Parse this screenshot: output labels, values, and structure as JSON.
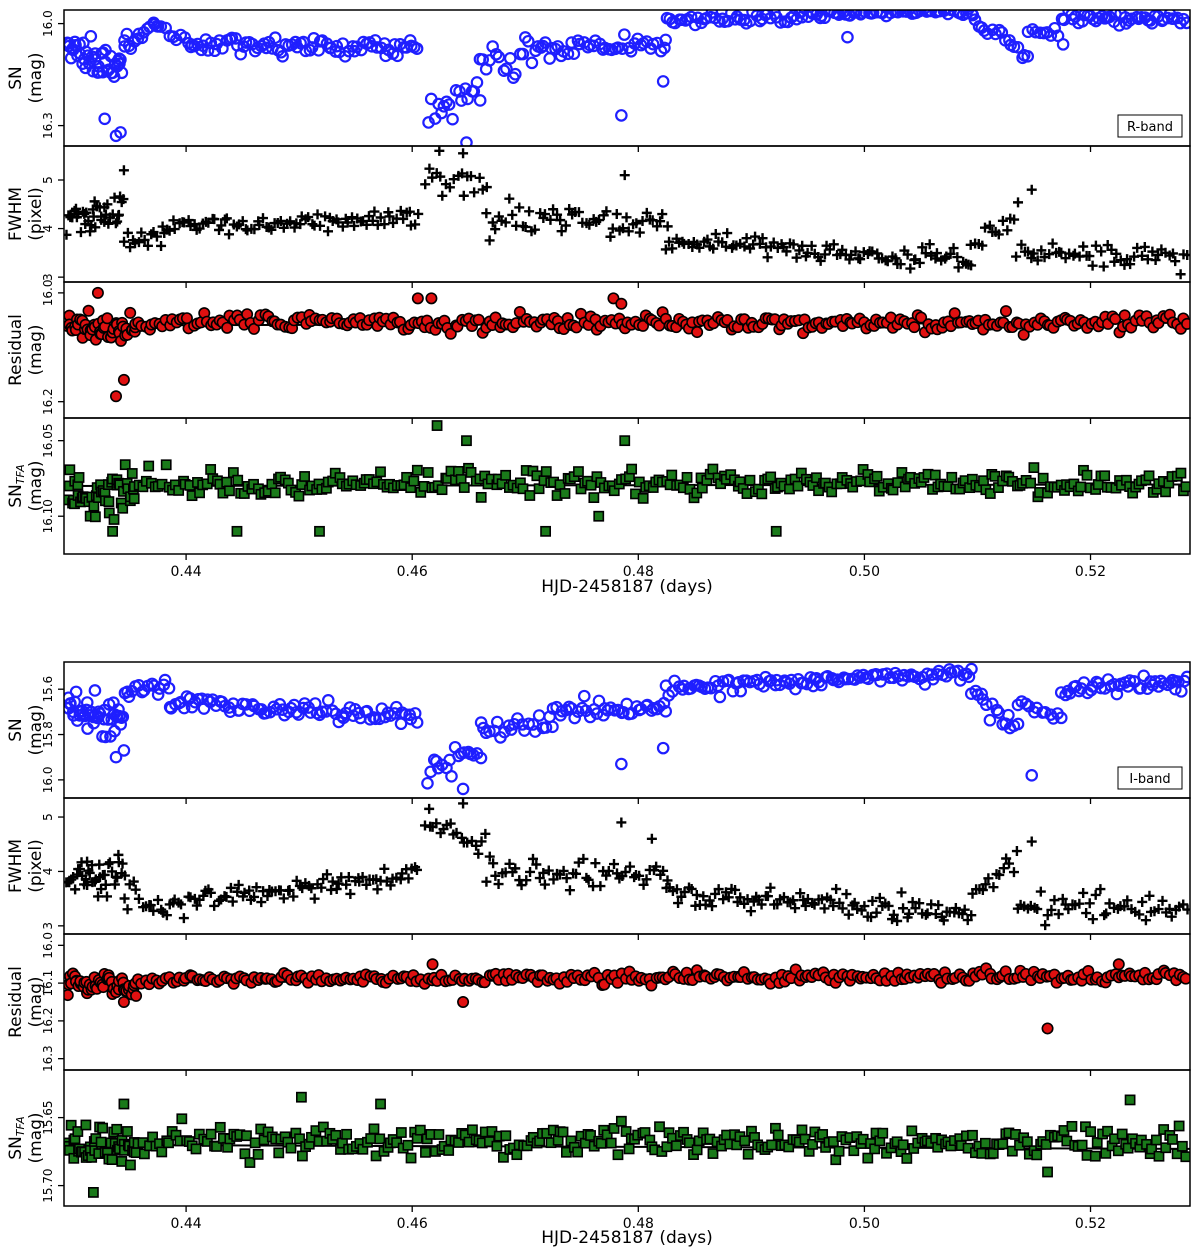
{
  "chart_data": [
    {
      "type": "scatter",
      "band_label": "R-band",
      "xlabel": "HJD-2458187 (days)",
      "xlim": [
        0.4292,
        0.5288
      ],
      "xticks": [
        0.44,
        0.46,
        0.48,
        0.5,
        0.52
      ],
      "xtick_labels": [
        "0.44",
        "0.46",
        "0.48",
        "0.50",
        "0.52"
      ],
      "panels": [
        {
          "id": "sn",
          "ylabel_lines": [
            "SN",
            "(mag)"
          ],
          "ylim": [
            15.96,
            16.36
          ],
          "inverted": true,
          "yticks": [
            16.0,
            16.3
          ],
          "ytick_labels": [
            "16.0",
            "16.3"
          ],
          "marker": "open-circle",
          "color": "#1f1fff",
          "seed": 11,
          "segments": [
            {
              "x0": 0.4295,
              "x1": 0.4345,
              "y0": 16.08,
              "y1": 16.13,
              "n": 45,
              "scatter": 0.045
            },
            {
              "x0": 0.4345,
              "x1": 0.4375,
              "y0": 16.07,
              "y1": 16.0,
              "n": 14,
              "scatter": 0.015
            },
            {
              "x0": 0.4375,
              "x1": 0.4405,
              "y0": 16.0,
              "y1": 16.06,
              "n": 10,
              "scatter": 0.015
            },
            {
              "x0": 0.4405,
              "x1": 0.4605,
              "y0": 16.06,
              "y1": 16.07,
              "n": 80,
              "scatter": 0.02
            },
            {
              "x0": 0.4615,
              "x1": 0.466,
              "y0": 16.25,
              "y1": 16.2,
              "n": 18,
              "scatter": 0.04
            },
            {
              "x0": 0.466,
              "x1": 0.4715,
              "y0": 16.1,
              "y1": 16.08,
              "n": 20,
              "scatter": 0.04
            },
            {
              "x0": 0.4715,
              "x1": 0.4825,
              "y0": 16.08,
              "y1": 16.06,
              "n": 40,
              "scatter": 0.025
            },
            {
              "x0": 0.4825,
              "x1": 0.4945,
              "y0": 15.99,
              "y1": 15.98,
              "n": 45,
              "scatter": 0.015
            },
            {
              "x0": 0.4945,
              "x1": 0.5095,
              "y0": 15.97,
              "y1": 15.965,
              "n": 60,
              "scatter": 0.01
            },
            {
              "x0": 0.5095,
              "x1": 0.5145,
              "y0": 15.99,
              "y1": 16.09,
              "n": 18,
              "scatter": 0.02
            },
            {
              "x0": 0.5145,
              "x1": 0.5175,
              "y0": 16.02,
              "y1": 16.03,
              "n": 10,
              "scatter": 0.015
            },
            {
              "x0": 0.5175,
              "x1": 0.5285,
              "y0": 15.98,
              "y1": 15.99,
              "n": 45,
              "scatter": 0.015
            }
          ],
          "extra_points": [
            [
              0.4338,
              16.33
            ],
            [
              0.4342,
              16.32
            ],
            [
              0.4328,
              16.28
            ],
            [
              0.4785,
              16.27
            ],
            [
              0.4648,
              16.35
            ],
            [
              0.4985,
              16.04
            ],
            [
              0.4822,
              16.17
            ]
          ]
        },
        {
          "id": "fwhm",
          "ylabel_lines": [
            "FWHM",
            "(pixel)"
          ],
          "ylim": [
            2.9,
            5.7
          ],
          "inverted": false,
          "yticks": [
            3,
            4,
            5
          ],
          "ytick_labels": [
            "3",
            "4",
            "5"
          ],
          "marker": "plus",
          "color": "#000000",
          "seed": 23,
          "segments": [
            {
              "x0": 0.4295,
              "x1": 0.4345,
              "y0": 4.2,
              "y1": 4.3,
              "n": 40,
              "scatter": 0.35
            },
            {
              "x0": 0.4345,
              "x1": 0.438,
              "y0": 3.9,
              "y1": 3.8,
              "n": 14,
              "scatter": 0.2
            },
            {
              "x0": 0.438,
              "x1": 0.4605,
              "y0": 4.0,
              "y1": 4.25,
              "n": 85,
              "scatter": 0.17
            },
            {
              "x0": 0.4612,
              "x1": 0.4665,
              "y0": 5.0,
              "y1": 4.7,
              "n": 18,
              "scatter": 0.25
            },
            {
              "x0": 0.4665,
              "x1": 0.4825,
              "y0": 4.2,
              "y1": 4.05,
              "n": 55,
              "scatter": 0.25
            },
            {
              "x0": 0.4825,
              "x1": 0.5095,
              "y0": 3.7,
              "y1": 3.35,
              "n": 100,
              "scatter": 0.17
            },
            {
              "x0": 0.5095,
              "x1": 0.5135,
              "y0": 3.6,
              "y1": 4.3,
              "n": 14,
              "scatter": 0.2
            },
            {
              "x0": 0.5135,
              "x1": 0.5285,
              "y0": 3.5,
              "y1": 3.4,
              "n": 50,
              "scatter": 0.2
            }
          ],
          "extra_points": [
            [
              0.4345,
              5.2
            ],
            [
              0.4624,
              5.6
            ],
            [
              0.4645,
              5.55
            ],
            [
              0.4788,
              5.1
            ],
            [
              0.5148,
              4.8
            ]
          ]
        },
        {
          "id": "residual",
          "ylabel_lines": [
            "Residual",
            "(mag)"
          ],
          "ylim": [
            15.98,
            16.23
          ],
          "inverted": true,
          "yticks": [
            16.0,
            16.2
          ],
          "ytick_labels": [
            "16.0",
            "16.2"
          ],
          "marker": "filled-circle",
          "color": "#e01010",
          "seed": 37,
          "fit": [
            16.06,
            16.055
          ],
          "segments": [
            {
              "x0": 0.4295,
              "x1": 0.4355,
              "y0": 16.06,
              "y1": 16.07,
              "n": 50,
              "scatter": 0.02
            },
            {
              "x0": 0.4355,
              "x1": 0.5285,
              "y0": 16.055,
              "y1": 16.055,
              "n": 310,
              "scatter": 0.012
            }
          ],
          "extra_points": [
            [
              0.4338,
              16.19
            ],
            [
              0.4345,
              16.16
            ],
            [
              0.4322,
              16.0
            ],
            [
              0.4605,
              16.01
            ],
            [
              0.4617,
              16.01
            ],
            [
              0.4778,
              16.01
            ],
            [
              0.4785,
              16.02
            ]
          ]
        },
        {
          "id": "sntfa",
          "ylabel_lines": [
            "SN_TFA",
            "(mag)"
          ],
          "ylim": [
            16.035,
            16.125
          ],
          "inverted": true,
          "yticks": [
            16.05,
            16.1
          ],
          "ytick_labels": [
            "16.05",
            "16.10"
          ],
          "marker": "filled-square",
          "color": "#1a7a1a",
          "seed": 53,
          "fit": [
            16.08,
            16.079
          ],
          "segments": [
            {
              "x0": 0.4295,
              "x1": 0.4355,
              "y0": 16.085,
              "y1": 16.085,
              "n": 50,
              "scatter": 0.012
            },
            {
              "x0": 0.4355,
              "x1": 0.5285,
              "y0": 16.078,
              "y1": 16.078,
              "n": 310,
              "scatter": 0.007
            }
          ],
          "extra_points": [
            [
              0.4622,
              16.04
            ],
            [
              0.4648,
              16.05
            ],
            [
              0.4788,
              16.05
            ],
            [
              0.4445,
              16.11
            ],
            [
              0.4518,
              16.11
            ],
            [
              0.4718,
              16.11
            ],
            [
              0.4765,
              16.1
            ],
            [
              0.4922,
              16.11
            ],
            [
              0.4335,
              16.11
            ]
          ]
        }
      ]
    },
    {
      "type": "scatter",
      "band_label": "I-band",
      "xlabel": "HJD-2458187 (days)",
      "xlim": [
        0.4292,
        0.5288
      ],
      "xticks": [
        0.44,
        0.46,
        0.48,
        0.5,
        0.52
      ],
      "xtick_labels": [
        "0.44",
        "0.46",
        "0.48",
        "0.50",
        "0.52"
      ],
      "panels": [
        {
          "id": "sn",
          "ylabel_lines": [
            "SN",
            "(mag)"
          ],
          "ylim": [
            15.48,
            16.08
          ],
          "inverted": true,
          "yticks": [
            15.6,
            15.8,
            16.0
          ],
          "ytick_labels": [
            "15.6",
            "15.8",
            "16.0"
          ],
          "marker": "open-circle",
          "color": "#1f1fff",
          "seed": 67,
          "segments": [
            {
              "x0": 0.4295,
              "x1": 0.4345,
              "y0": 15.68,
              "y1": 15.74,
              "n": 45,
              "scatter": 0.06
            },
            {
              "x0": 0.4345,
              "x1": 0.4385,
              "y0": 15.62,
              "y1": 15.57,
              "n": 16,
              "scatter": 0.03
            },
            {
              "x0": 0.4385,
              "x1": 0.4605,
              "y0": 15.66,
              "y1": 15.72,
              "n": 85,
              "scatter": 0.035
            },
            {
              "x0": 0.4613,
              "x1": 0.466,
              "y0": 15.95,
              "y1": 15.88,
              "n": 18,
              "scatter": 0.04
            },
            {
              "x0": 0.466,
              "x1": 0.4725,
              "y0": 15.78,
              "y1": 15.76,
              "n": 22,
              "scatter": 0.05
            },
            {
              "x0": 0.4725,
              "x1": 0.4825,
              "y0": 15.7,
              "y1": 15.68,
              "n": 38,
              "scatter": 0.03
            },
            {
              "x0": 0.4825,
              "x1": 0.4955,
              "y0": 15.6,
              "y1": 15.56,
              "n": 50,
              "scatter": 0.025
            },
            {
              "x0": 0.4955,
              "x1": 0.5095,
              "y0": 15.56,
              "y1": 15.53,
              "n": 55,
              "scatter": 0.02
            },
            {
              "x0": 0.5095,
              "x1": 0.5135,
              "y0": 15.6,
              "y1": 15.78,
              "n": 16,
              "scatter": 0.04
            },
            {
              "x0": 0.5135,
              "x1": 0.5175,
              "y0": 15.68,
              "y1": 15.72,
              "n": 12,
              "scatter": 0.02
            },
            {
              "x0": 0.5175,
              "x1": 0.5285,
              "y0": 15.6,
              "y1": 15.56,
              "n": 45,
              "scatter": 0.025
            }
          ],
          "extra_points": [
            [
              0.4338,
              15.9
            ],
            [
              0.4345,
              15.87
            ],
            [
              0.4785,
              15.93
            ],
            [
              0.4645,
              16.04
            ],
            [
              0.5148,
              15.98
            ],
            [
              0.4822,
              15.86
            ],
            [
              0.5275,
              15.6
            ]
          ]
        },
        {
          "id": "fwhm",
          "ylabel_lines": [
            "FWHM",
            "(pixel)"
          ],
          "ylim": [
            2.85,
            5.35
          ],
          "inverted": false,
          "yticks": [
            3,
            4,
            5
          ],
          "ytick_labels": [
            "3",
            "4",
            "5"
          ],
          "marker": "plus",
          "color": "#000000",
          "seed": 79,
          "segments": [
            {
              "x0": 0.4295,
              "x1": 0.4345,
              "y0": 3.8,
              "y1": 4.0,
              "n": 40,
              "scatter": 0.3
            },
            {
              "x0": 0.4345,
              "x1": 0.438,
              "y0": 3.6,
              "y1": 3.2,
              "n": 14,
              "scatter": 0.2
            },
            {
              "x0": 0.438,
              "x1": 0.4605,
              "y0": 3.4,
              "y1": 3.95,
              "n": 85,
              "scatter": 0.2
            },
            {
              "x0": 0.4612,
              "x1": 0.4665,
              "y0": 4.75,
              "y1": 4.65,
              "n": 18,
              "scatter": 0.2
            },
            {
              "x0": 0.4665,
              "x1": 0.4825,
              "y0": 4.0,
              "y1": 3.9,
              "n": 55,
              "scatter": 0.25
            },
            {
              "x0": 0.4825,
              "x1": 0.5095,
              "y0": 3.6,
              "y1": 3.2,
              "n": 100,
              "scatter": 0.17
            },
            {
              "x0": 0.5095,
              "x1": 0.5135,
              "y0": 3.6,
              "y1": 4.2,
              "n": 14,
              "scatter": 0.2
            },
            {
              "x0": 0.5135,
              "x1": 0.5285,
              "y0": 3.4,
              "y1": 3.3,
              "n": 50,
              "scatter": 0.2
            }
          ],
          "extra_points": [
            [
              0.4615,
              5.15
            ],
            [
              0.4645,
              5.25
            ],
            [
              0.4785,
              4.9
            ],
            [
              0.4812,
              4.6
            ],
            [
              0.5148,
              4.55
            ]
          ]
        },
        {
          "id": "residual",
          "ylabel_lines": [
            "Residual",
            "(mag)"
          ],
          "ylim": [
            15.97,
            16.33
          ],
          "inverted": true,
          "yticks": [
            16.0,
            16.1,
            16.2,
            16.3
          ],
          "ytick_labels": [
            "16.0",
            "16.1",
            "16.2",
            "16.3"
          ],
          "marker": "filled-circle",
          "color": "#e01010",
          "seed": 91,
          "fit": [
            16.1,
            16.083
          ],
          "segments": [
            {
              "x0": 0.4295,
              "x1": 0.4355,
              "y0": 16.1,
              "y1": 16.11,
              "n": 50,
              "scatter": 0.02
            },
            {
              "x0": 0.4355,
              "x1": 0.5285,
              "y0": 16.09,
              "y1": 16.083,
              "n": 310,
              "scatter": 0.013
            }
          ],
          "extra_points": [
            [
              0.4618,
              16.05
            ],
            [
              0.4645,
              16.15
            ],
            [
              0.5162,
              16.22
            ],
            [
              0.5225,
              16.05
            ],
            [
              0.4345,
              16.15
            ]
          ]
        },
        {
          "id": "sntfa",
          "ylabel_lines": [
            "SN_TFA",
            "(mag)"
          ],
          "ylim": [
            15.615,
            15.715
          ],
          "inverted": true,
          "yticks": [
            15.65,
            15.7
          ],
          "ytick_labels": [
            "15.65",
            "15.70"
          ],
          "marker": "filled-square",
          "color": "#1a7a1a",
          "seed": 107,
          "fit": [
            15.67,
            15.673
          ],
          "segments": [
            {
              "x0": 0.4295,
              "x1": 0.4355,
              "y0": 15.672,
              "y1": 15.672,
              "n": 50,
              "scatter": 0.012
            },
            {
              "x0": 0.4355,
              "x1": 0.5285,
              "y0": 15.668,
              "y1": 15.668,
              "n": 310,
              "scatter": 0.009
            }
          ],
          "extra_points": [
            [
              0.4502,
              15.635
            ],
            [
              0.4318,
              15.705
            ],
            [
              0.4345,
              15.64
            ],
            [
              0.5235,
              15.637
            ],
            [
              0.5162,
              15.69
            ],
            [
              0.4572,
              15.64
            ]
          ]
        }
      ]
    }
  ]
}
